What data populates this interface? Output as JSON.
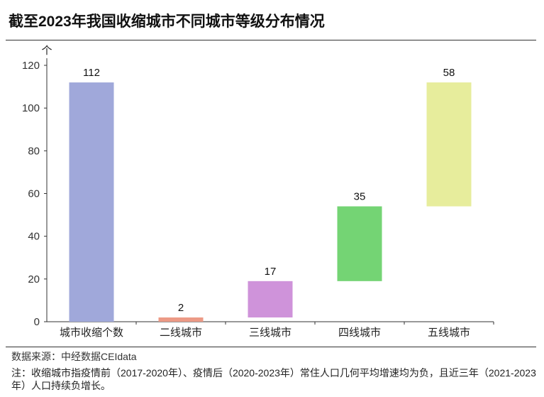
{
  "header": {
    "title": "截至2023年我国收缩城市不同城市等级分布情况"
  },
  "chart_data": {
    "type": "bar",
    "subtype": "waterfall",
    "unit_label": "个",
    "categories": [
      "城市收缩个数",
      "二线城市",
      "三线城市",
      "四线城市",
      "五线城市"
    ],
    "values": [
      112,
      2,
      17,
      35,
      58
    ],
    "data_labels": [
      "112",
      "2",
      "17",
      "35",
      "58"
    ],
    "colors": [
      "#A0A8DA",
      "#EC9A86",
      "#CF93DA",
      "#74D474",
      "#E7ED9C"
    ],
    "ylim": [
      0,
      120
    ],
    "yticks": [
      0,
      20,
      40,
      60,
      80,
      100,
      120
    ],
    "grid": false,
    "legend": "none"
  },
  "footer": {
    "source": "数据来源：中经数据CEIdata",
    "note": "注：收缩城市指疫情前（2017-2020年）、疫情后（2020-2023年）常住人口几何平均增速均为负，且近三年（2021-2023年）人口持续负增长。"
  }
}
